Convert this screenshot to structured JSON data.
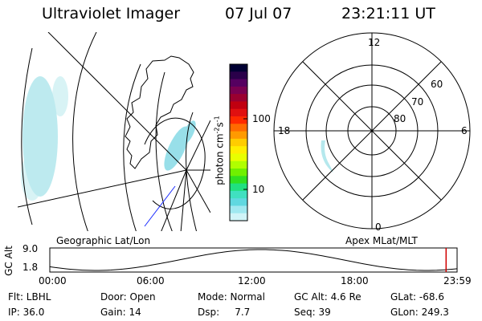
{
  "header": {
    "instrument": "Ultraviolet Imager",
    "date": "07 Jul 07",
    "time": "23:21:11 UT"
  },
  "left_panel": {
    "label": "Geographic Lat/Lon"
  },
  "right_panel": {
    "label": "Apex MLat/MLT",
    "mlt_labels": [
      "12",
      "18",
      "6",
      "0"
    ],
    "lat_labels": [
      "60",
      "70",
      "80"
    ]
  },
  "colorbar": {
    "label": "photon cm",
    "label_exp1": "-2",
    "label_s": "s",
    "label_exp2": "-1",
    "ticks": [
      "100",
      "10"
    ],
    "colors": [
      "#000033",
      "#2a004a",
      "#550060",
      "#7a0050",
      "#9a0030",
      "#c00010",
      "#e01010",
      "#ff2a00",
      "#ff6a00",
      "#ff9a00",
      "#ffcc00",
      "#ffee00",
      "#e8ff00",
      "#b0ff00",
      "#70f000",
      "#30e020",
      "#20e080",
      "#40e0c0",
      "#60d8e0",
      "#a0e8f0",
      "#d0f4f8"
    ]
  },
  "altitude_strip": {
    "label": "GC Alt",
    "y_max": "9.0",
    "y_min": "1.8",
    "x_ticks": [
      "00:00",
      "06:00",
      "12:00",
      "18:00",
      "23:59"
    ],
    "current_marker_hour": 23.35
  },
  "footer": {
    "row1": [
      {
        "text": "Flt: LBHL"
      },
      {
        "text": "Door: Open"
      },
      {
        "text": "Mode: Normal"
      },
      {
        "text": "GC Alt: 4.6 Re"
      },
      {
        "text": "GLat: -68.6"
      }
    ],
    "row2": [
      {
        "text": "IP: 36.0"
      },
      {
        "text": "Gain: 14"
      },
      {
        "text": "Dsp:     7.7"
      },
      {
        "text": "Seq: 39"
      },
      {
        "text": "GLon: 249.3"
      }
    ]
  }
}
